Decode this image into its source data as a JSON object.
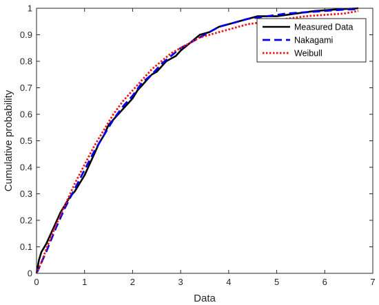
{
  "chart_data": {
    "type": "line",
    "title": "",
    "xlabel": "Data",
    "ylabel": "Cumulative probability",
    "xlim": [
      0,
      7
    ],
    "ylim": [
      0,
      1
    ],
    "xticks": [
      0,
      1,
      2,
      3,
      4,
      5,
      6,
      7
    ],
    "yticks": [
      0,
      0.1,
      0.2,
      0.3,
      0.4,
      0.5,
      0.6,
      0.7,
      0.8,
      0.9,
      1
    ],
    "ytick_labels": [
      "0",
      "0.1",
      "0.2",
      "0.3",
      "0.4",
      "0.5",
      "0.6",
      "0.7",
      "0.8",
      "0.9",
      "1"
    ],
    "grid": false,
    "legend_position": "top-right",
    "series": [
      {
        "name": "Measured Data",
        "color": "#000000",
        "style": "solid",
        "x": [
          0,
          0.05,
          0.1,
          0.2,
          0.3,
          0.4,
          0.5,
          0.6,
          0.7,
          0.8,
          0.9,
          1.0,
          1.1,
          1.2,
          1.3,
          1.4,
          1.5,
          1.6,
          1.7,
          1.8,
          1.9,
          2.0,
          2.1,
          2.2,
          2.3,
          2.4,
          2.5,
          2.6,
          2.7,
          2.8,
          2.9,
          3.0,
          3.2,
          3.4,
          3.6,
          3.8,
          4.0,
          4.2,
          4.4,
          4.6,
          5.0,
          5.4,
          5.8,
          6.2,
          6.7
        ],
        "y": [
          0,
          0.05,
          0.08,
          0.11,
          0.15,
          0.19,
          0.23,
          0.26,
          0.29,
          0.31,
          0.34,
          0.37,
          0.41,
          0.45,
          0.49,
          0.52,
          0.56,
          0.58,
          0.6,
          0.62,
          0.64,
          0.66,
          0.69,
          0.71,
          0.73,
          0.75,
          0.76,
          0.78,
          0.8,
          0.81,
          0.82,
          0.84,
          0.87,
          0.9,
          0.91,
          0.93,
          0.94,
          0.95,
          0.96,
          0.97,
          0.97,
          0.98,
          0.99,
          0.995,
          1.0
        ]
      },
      {
        "name": "Nakagami",
        "color": "#0000ee",
        "style": "dashed",
        "x": [
          0,
          0.1,
          0.2,
          0.4,
          0.6,
          0.8,
          1.0,
          1.2,
          1.4,
          1.6,
          1.8,
          2.0,
          2.2,
          2.4,
          2.6,
          2.8,
          3.0,
          3.2,
          3.4,
          3.6,
          3.8,
          4.0,
          4.4,
          4.8,
          5.2,
          5.6,
          6.0,
          6.4,
          6.7
        ],
        "y": [
          0,
          0.04,
          0.08,
          0.17,
          0.25,
          0.32,
          0.39,
          0.46,
          0.52,
          0.58,
          0.63,
          0.67,
          0.72,
          0.75,
          0.79,
          0.82,
          0.85,
          0.87,
          0.89,
          0.91,
          0.93,
          0.94,
          0.96,
          0.97,
          0.98,
          0.985,
          0.99,
          0.995,
          0.997
        ]
      },
      {
        "name": "Weibull",
        "color": "#ee1111",
        "style": "dotted",
        "x": [
          0,
          0.1,
          0.2,
          0.4,
          0.6,
          0.8,
          1.0,
          1.2,
          1.4,
          1.6,
          1.8,
          2.0,
          2.2,
          2.4,
          2.6,
          2.8,
          3.0,
          3.2,
          3.4,
          3.6,
          3.8,
          4.0,
          4.4,
          4.8,
          5.2,
          5.6,
          6.0,
          6.4,
          6.7
        ],
        "y": [
          0,
          0.04,
          0.09,
          0.18,
          0.26,
          0.34,
          0.41,
          0.48,
          0.54,
          0.6,
          0.65,
          0.69,
          0.73,
          0.77,
          0.8,
          0.83,
          0.85,
          0.87,
          0.89,
          0.9,
          0.91,
          0.92,
          0.94,
          0.95,
          0.96,
          0.97,
          0.975,
          0.98,
          0.99
        ]
      }
    ]
  }
}
